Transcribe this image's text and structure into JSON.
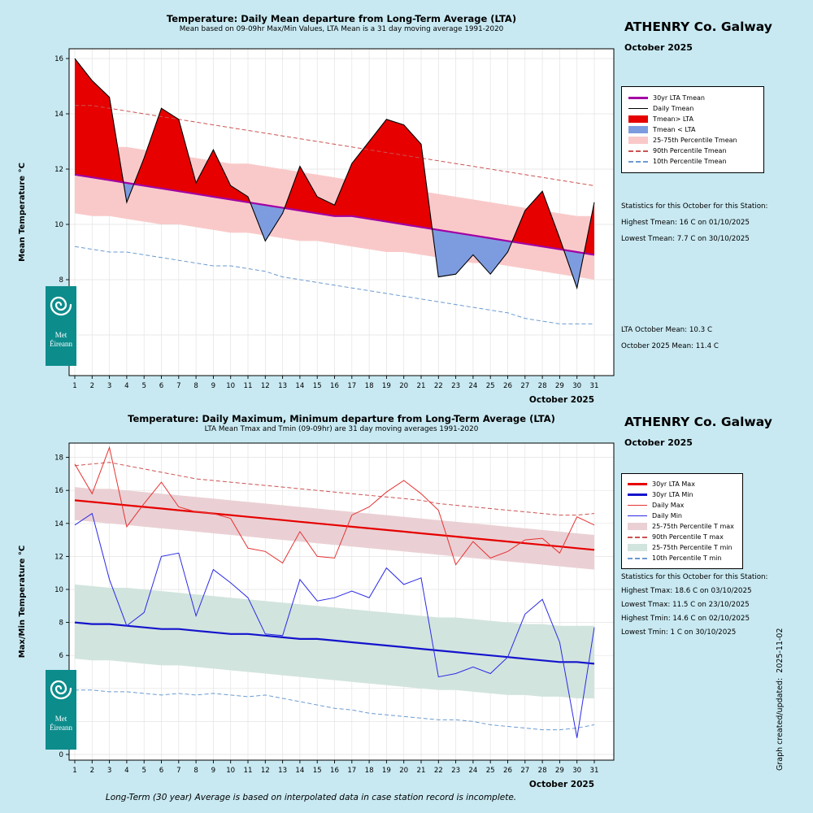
{
  "page": {
    "footer": "Long-Term (30 year) Average is based on interpolated data in case station record is incomplete.",
    "credit": "Graph created/updated:  2025-11-02"
  },
  "logo": {
    "line1": "Met",
    "line2": "Éireann"
  },
  "colors": {
    "background": "#c8e9f2",
    "grid": "#e3e3e3",
    "fill_above": "#e60000",
    "fill_below": "#7d9ce0",
    "band_pink": "#f9c9c9",
    "lta_purple": "#a300a3",
    "dash_red": "#cc5252",
    "dash_blue": "#6b9bd1",
    "band_tmax": "#ead0d4",
    "band_tmin": "#d2e4de",
    "lta_red": "#e60000",
    "lta_blue": "#1414cc",
    "daily_red": "#e63333",
    "daily_blue": "#2a2ae6",
    "logo_teal": "#0d8c8c"
  },
  "top_chart": {
    "title": "Temperature: Daily Mean departure from Long-Term Average (LTA)",
    "subtitle": "Mean based on 09-09hr Max/Min Values, LTA Mean is a 31 day moving average 1991-2020",
    "station": "ATHENRY Co. Galway",
    "month": "October 2025",
    "ylabel": "Mean Temperature °C",
    "xlabel": "October 2025",
    "legend": [
      {
        "label": "30yr LTA Tmean",
        "swatch": "line",
        "color": "#a300a3",
        "weight": 3
      },
      {
        "label": "Daily Tmean",
        "swatch": "line",
        "color": "#000000",
        "weight": 1.5
      },
      {
        "label": "Tmean> LTA",
        "swatch": "fill",
        "color": "#e60000"
      },
      {
        "label": "Tmean < LTA",
        "swatch": "fill",
        "color": "#7d9ce0"
      },
      {
        "label": "25-75th Percentile Tmean",
        "swatch": "fill",
        "color": "#f9c9c9"
      },
      {
        "label": "90th Percentile Tmean",
        "swatch": "dash",
        "color": "#cc5252"
      },
      {
        "label": "10th Percentile Tmean",
        "swatch": "dash",
        "color": "#6b9bd1"
      }
    ],
    "stats": {
      "title": "Statistics for this October for this Station:",
      "lines": [
        "Highest Tmean: 16 C on 01/10/2025",
        "Lowest Tmean: 7.7 C on 30/10/2025"
      ]
    },
    "lta_lines": [
      "LTA October Mean: 10.3 C",
      "October 2025 Mean: 11.4 C"
    ]
  },
  "bottom_chart": {
    "title": "Temperature: Daily Maximum, Minimum departure from Long-Term Average (LTA)",
    "subtitle": "LTA Mean Tmax and Tmin (09-09hr) are 31 day moving averages 1991-2020",
    "station": "ATHENRY Co. Galway",
    "month": "October 2025",
    "ylabel": "Max/Min Temperature °C",
    "xlabel": "October 2025",
    "legend": [
      {
        "label": "30yr LTA Max",
        "swatch": "line",
        "color": "#e60000",
        "weight": 3
      },
      {
        "label": "30yr LTA Min",
        "swatch": "line",
        "color": "#1414cc",
        "weight": 3
      },
      {
        "label": "Daily Max",
        "swatch": "line",
        "color": "#e63333",
        "weight": 1
      },
      {
        "label": "Daily Min",
        "swatch": "line",
        "color": "#2a2ae6",
        "weight": 1
      },
      {
        "label": "25-75th Percentile T max",
        "swatch": "fill",
        "color": "#ead0d4"
      },
      {
        "label": "90th Percentile T max",
        "swatch": "dash",
        "color": "#cc5252"
      },
      {
        "label": "25-75th Percentile T min",
        "swatch": "fill",
        "color": "#d2e4de"
      },
      {
        "label": "10th Percentile T min",
        "swatch": "dash",
        "color": "#6b9bd1"
      }
    ],
    "stats": {
      "title": "Statistics for this October for this Station:",
      "lines": [
        "Highest Tmax: 18.6 C on 03/10/2025",
        "Lowest Tmax: 11.5 C on 23/10/2025",
        "Highest Tmin: 14.6 C on 02/10/2025",
        "Lowest Tmin: 1 C on 30/10/2025"
      ]
    }
  },
  "chart_data": [
    {
      "type": "line",
      "title": "Temperature: Daily Mean departure from Long-Term Average (LTA)",
      "xlabel": "October 2025",
      "ylabel": "Mean Temperature °C",
      "days": [
        1,
        2,
        3,
        4,
        5,
        6,
        7,
        8,
        9,
        10,
        11,
        12,
        13,
        14,
        15,
        16,
        17,
        18,
        19,
        20,
        21,
        22,
        23,
        24,
        25,
        26,
        27,
        28,
        29,
        30,
        31
      ],
      "yticks": [
        6,
        8,
        10,
        12,
        14,
        16
      ],
      "ylim": [
        4.5,
        16.4
      ],
      "series": [
        {
          "name": "Daily Tmean",
          "values": [
            16.0,
            15.2,
            14.6,
            10.8,
            12.4,
            14.2,
            13.8,
            11.5,
            12.7,
            11.4,
            11.0,
            9.4,
            10.4,
            12.1,
            11.0,
            10.7,
            12.2,
            13.0,
            13.8,
            13.6,
            12.9,
            8.1,
            8.2,
            8.9,
            8.2,
            9.0,
            10.5,
            11.2,
            9.5,
            7.7,
            10.8
          ]
        },
        {
          "name": "30yr LTA Tmean",
          "values": [
            11.8,
            11.7,
            11.6,
            11.5,
            11.4,
            11.3,
            11.2,
            11.1,
            11.0,
            10.9,
            10.8,
            10.7,
            10.6,
            10.5,
            10.4,
            10.3,
            10.3,
            10.2,
            10.1,
            10.0,
            9.9,
            9.8,
            9.7,
            9.6,
            9.5,
            9.4,
            9.3,
            9.2,
            9.1,
            9.0,
            8.9
          ]
        },
        {
          "name": "90th Percentile Tmean",
          "values": [
            14.3,
            14.3,
            14.2,
            14.1,
            14.0,
            13.9,
            13.8,
            13.7,
            13.6,
            13.5,
            13.4,
            13.3,
            13.2,
            13.1,
            13.0,
            12.9,
            12.8,
            12.7,
            12.6,
            12.5,
            12.4,
            12.3,
            12.2,
            12.1,
            12.0,
            11.9,
            11.8,
            11.7,
            11.6,
            11.5,
            11.4
          ]
        },
        {
          "name": "10th Percentile Tmean",
          "values": [
            9.2,
            9.1,
            9.0,
            9.0,
            8.9,
            8.8,
            8.7,
            8.6,
            8.5,
            8.5,
            8.4,
            8.3,
            8.1,
            8.0,
            7.9,
            7.8,
            7.7,
            7.6,
            7.5,
            7.4,
            7.3,
            7.2,
            7.1,
            7.0,
            6.9,
            6.8,
            6.6,
            6.5,
            6.4,
            6.4,
            6.4
          ]
        },
        {
          "name": "75th Percentile Tmean",
          "values": [
            12.9,
            12.9,
            12.8,
            12.8,
            12.7,
            12.6,
            12.5,
            12.4,
            12.3,
            12.2,
            12.2,
            12.1,
            12.0,
            11.9,
            11.8,
            11.7,
            11.6,
            11.5,
            11.4,
            11.3,
            11.2,
            11.1,
            11.0,
            10.9,
            10.8,
            10.7,
            10.6,
            10.5,
            10.4,
            10.3,
            10.3
          ]
        },
        {
          "name": "25th Percentile Tmean",
          "values": [
            10.4,
            10.3,
            10.3,
            10.2,
            10.1,
            10.0,
            10.0,
            9.9,
            9.8,
            9.7,
            9.7,
            9.6,
            9.5,
            9.4,
            9.4,
            9.3,
            9.2,
            9.1,
            9.0,
            9.0,
            8.9,
            8.8,
            8.7,
            8.6,
            8.6,
            8.5,
            8.4,
            8.3,
            8.2,
            8.1,
            8.0
          ]
        }
      ]
    },
    {
      "type": "line",
      "title": "Temperature: Daily Maximum, Minimum departure from Long-Term Average (LTA)",
      "xlabel": "October 2025",
      "ylabel": "Max/Min Temperature °C",
      "days": [
        1,
        2,
        3,
        4,
        5,
        6,
        7,
        8,
        9,
        10,
        11,
        12,
        13,
        14,
        15,
        16,
        17,
        18,
        19,
        20,
        21,
        22,
        23,
        24,
        25,
        26,
        27,
        28,
        29,
        30,
        31
      ],
      "yticks": [
        0,
        2,
        4,
        6,
        8,
        10,
        12,
        14,
        16,
        18
      ],
      "ylim": [
        -0.4,
        18.9
      ],
      "series": [
        {
          "name": "Daily Max",
          "values": [
            17.6,
            15.8,
            18.6,
            13.8,
            15.2,
            16.5,
            15.0,
            14.7,
            14.6,
            14.3,
            12.5,
            12.3,
            11.6,
            13.5,
            12.0,
            11.9,
            14.5,
            15.0,
            15.9,
            16.6,
            15.8,
            14.8,
            11.5,
            12.9,
            11.9,
            12.3,
            13.0,
            13.1,
            12.2,
            14.4,
            13.9
          ]
        },
        {
          "name": "Daily Min",
          "values": [
            13.9,
            14.6,
            10.6,
            7.8,
            8.6,
            12.0,
            12.2,
            8.4,
            11.2,
            10.4,
            9.5,
            7.3,
            7.2,
            10.6,
            9.3,
            9.5,
            9.9,
            9.5,
            11.3,
            10.3,
            10.7,
            4.7,
            4.9,
            5.3,
            4.9,
            5.9,
            8.5,
            9.4,
            6.8,
            1.0,
            7.7
          ]
        },
        {
          "name": "30yr LTA Max",
          "values": [
            15.4,
            15.3,
            15.2,
            15.1,
            15.0,
            14.9,
            14.8,
            14.7,
            14.6,
            14.5,
            14.4,
            14.3,
            14.2,
            14.1,
            14.0,
            13.9,
            13.8,
            13.7,
            13.6,
            13.5,
            13.4,
            13.3,
            13.2,
            13.1,
            13.0,
            12.9,
            12.8,
            12.7,
            12.6,
            12.5,
            12.4
          ]
        },
        {
          "name": "30yr LTA Min",
          "values": [
            8.0,
            7.9,
            7.9,
            7.8,
            7.7,
            7.6,
            7.6,
            7.5,
            7.4,
            7.3,
            7.3,
            7.2,
            7.1,
            7.0,
            7.0,
            6.9,
            6.8,
            6.7,
            6.6,
            6.5,
            6.4,
            6.3,
            6.2,
            6.1,
            6.0,
            5.9,
            5.8,
            5.7,
            5.6,
            5.6,
            5.5
          ]
        },
        {
          "name": "90th Percentile T max",
          "values": [
            17.5,
            17.6,
            17.7,
            17.5,
            17.3,
            17.1,
            16.9,
            16.7,
            16.6,
            16.5,
            16.4,
            16.3,
            16.2,
            16.1,
            16.0,
            15.9,
            15.8,
            15.7,
            15.6,
            15.5,
            15.4,
            15.2,
            15.1,
            15.0,
            14.9,
            14.8,
            14.7,
            14.6,
            14.5,
            14.5,
            14.6
          ]
        },
        {
          "name": "10th Percentile T min",
          "values": [
            3.9,
            3.9,
            3.8,
            3.8,
            3.7,
            3.6,
            3.7,
            3.6,
            3.7,
            3.6,
            3.5,
            3.6,
            3.4,
            3.2,
            3.0,
            2.8,
            2.7,
            2.5,
            2.4,
            2.3,
            2.2,
            2.1,
            2.1,
            2.0,
            1.8,
            1.7,
            1.6,
            1.5,
            1.5,
            1.6,
            1.8
          ]
        },
        {
          "name": "75th Percentile T max",
          "values": [
            16.2,
            16.1,
            16.1,
            16.0,
            15.9,
            15.8,
            15.7,
            15.6,
            15.5,
            15.4,
            15.3,
            15.2,
            15.1,
            15.0,
            14.9,
            14.8,
            14.7,
            14.6,
            14.5,
            14.4,
            14.3,
            14.2,
            14.1,
            14.0,
            13.9,
            13.8,
            13.7,
            13.6,
            13.5,
            13.4,
            13.3
          ]
        },
        {
          "name": "25th Percentile T max",
          "values": [
            14.2,
            14.1,
            14.0,
            13.9,
            13.8,
            13.7,
            13.6,
            13.5,
            13.4,
            13.3,
            13.2,
            13.1,
            13.0,
            12.9,
            12.8,
            12.7,
            12.6,
            12.5,
            12.4,
            12.3,
            12.2,
            12.1,
            12.0,
            11.9,
            11.8,
            11.7,
            11.6,
            11.5,
            11.4,
            11.3,
            11.2
          ]
        },
        {
          "name": "75th Percentile T min",
          "values": [
            10.3,
            10.2,
            10.1,
            10.1,
            10.0,
            9.9,
            9.8,
            9.7,
            9.6,
            9.5,
            9.4,
            9.3,
            9.2,
            9.1,
            9.0,
            8.9,
            8.8,
            8.7,
            8.6,
            8.5,
            8.4,
            8.3,
            8.3,
            8.2,
            8.1,
            8.0,
            7.9,
            7.9,
            7.8,
            7.8,
            7.8
          ]
        },
        {
          "name": "25th Percentile T min",
          "values": [
            5.8,
            5.7,
            5.7,
            5.6,
            5.5,
            5.4,
            5.4,
            5.3,
            5.2,
            5.1,
            5.0,
            4.9,
            4.8,
            4.7,
            4.6,
            4.5,
            4.4,
            4.3,
            4.2,
            4.1,
            4.0,
            3.9,
            3.9,
            3.8,
            3.7,
            3.6,
            3.6,
            3.5,
            3.5,
            3.4,
            3.4
          ]
        }
      ]
    }
  ]
}
